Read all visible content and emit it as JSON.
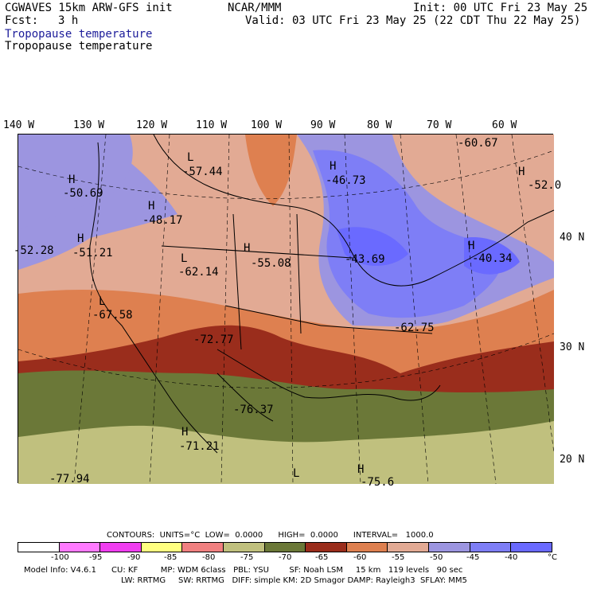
{
  "header": {
    "model": "CGWAVES 15km ARW-GFS init",
    "fcst_label": "Fcst:",
    "fcst_value": "3 h",
    "center": "NCAR/MMM",
    "init": "Init: 00 UTC Fri 23 May 25",
    "valid": "Valid: 03 UTC Fri 23 May 25 (22 CDT Thu 22 May 25)",
    "title_filled": "Tropopause temperature",
    "title_contour": "Tropopause temperature"
  },
  "map": {
    "longitudes": [
      "140 W",
      "130 W",
      "120 W",
      "110 W",
      "100 W",
      "90 W",
      "80 W",
      "70 W",
      "60 W"
    ],
    "latitudes": [
      "40 N",
      "30 N",
      "20 N"
    ],
    "labels": [
      {
        "letter": "L",
        "value": "-57.44"
      },
      {
        "letter": "H",
        "value": "-50.69"
      },
      {
        "letter": "H",
        "value": "-48.17"
      },
      {
        "letter": "H",
        "value": "-46.73"
      },
      {
        "letter": "",
        "value": "-60.67"
      },
      {
        "letter": "H",
        "value": "-52.0"
      },
      {
        "letter": "H",
        "value": "-51.21"
      },
      {
        "letter": "",
        "value": "-52.28"
      },
      {
        "letter": "H",
        "value": "-55.08"
      },
      {
        "letter": "L",
        "value": "-62.14"
      },
      {
        "letter": "",
        "value": "-43.69"
      },
      {
        "letter": "H",
        "value": "-40.34"
      },
      {
        "letter": "L",
        "value": "-67.58"
      },
      {
        "letter": "",
        "value": "-72.77"
      },
      {
        "letter": "",
        "value": "-62.75"
      },
      {
        "letter": "",
        "value": "-76.37"
      },
      {
        "letter": "H",
        "value": "-71.21"
      },
      {
        "letter": "",
        "value": "-77.94"
      },
      {
        "letter": "L",
        "value": ""
      },
      {
        "letter": "H",
        "value": "-75.6"
      }
    ]
  },
  "footer": {
    "contours_line": "CONTOURS:  UNITS=°C  LOW=  0.0000      HIGH=  0.0000      INTERVAL=   1000.0",
    "ticks": [
      "-100",
      "-95",
      "-90",
      "-85",
      "-80",
      "-75",
      "-70",
      "-65",
      "-60",
      "-55",
      "-50",
      "-45",
      "-40",
      "°C"
    ],
    "colorbar": [
      "#ffffff",
      "#ff7aff",
      "#f03ef0",
      "#ffff80",
      "#f08080",
      "#c0c07e",
      "#6b7838",
      "#9a2d1c",
      "#de8050",
      "#e2aa94",
      "#9c95e0",
      "#7e7ef6",
      "#6a6aff"
    ],
    "model_info": "Model Info: V4.6.1      CU: KF         MP: WDM 6class   PBL: YSU        SF: Noah LSM     15 km   119 levels   90 sec",
    "model_info2": "LW: RRTMG     SW: RRTMG   DIFF: simple KM: 2D Smagor DAMP: Rayleigh3  SFLAY: MM5"
  }
}
